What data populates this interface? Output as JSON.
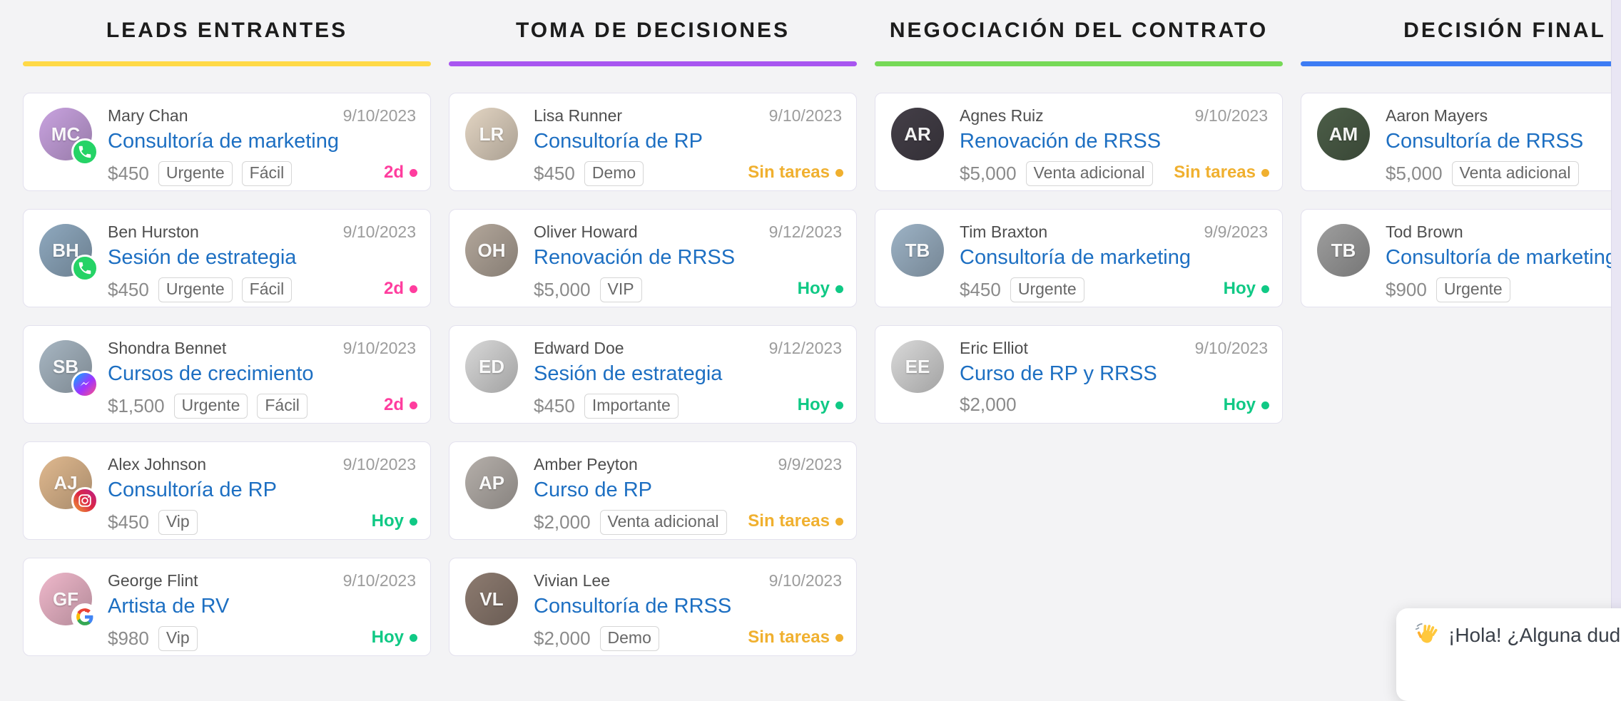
{
  "board": {
    "columns": [
      {
        "title": "LEADS ENTRANTES",
        "accent_color": "#FFD947",
        "cards": [
          {
            "name": "Mary Chan",
            "date": "9/10/2023",
            "title": "Consultoría de marketing",
            "price": "$450",
            "tags": [
              "Urgente",
              "Fácil"
            ],
            "status": {
              "label": "2d",
              "color": "#FF3D9E"
            },
            "badge": "whatsapp",
            "avatar": {
              "initials": "MC",
              "color": "#c9a3e0"
            }
          },
          {
            "name": "Ben Hurston",
            "date": "9/10/2023",
            "title": "Sesión de estrategia",
            "price": "$450",
            "tags": [
              "Urgente",
              "Fácil"
            ],
            "status": {
              "label": "2d",
              "color": "#FF3D9E"
            },
            "badge": "whatsapp",
            "avatar": {
              "initials": "BH",
              "color": "#8fa9bf"
            }
          },
          {
            "name": "Shondra Bennet",
            "date": "9/10/2023",
            "title": "Cursos de crecimiento",
            "price": "$1,500",
            "tags": [
              "Urgente",
              "Fácil"
            ],
            "status": {
              "label": "2d",
              "color": "#FF3D9E"
            },
            "badge": "messenger",
            "avatar": {
              "initials": "SB",
              "color": "#a7b6c2"
            }
          },
          {
            "name": "Alex Johnson",
            "date": "9/10/2023",
            "title": "Consultoría de RP",
            "price": "$450",
            "tags": [
              "Vip"
            ],
            "status": {
              "label": "Hoy",
              "color": "#10C985"
            },
            "badge": "instagram",
            "avatar": {
              "initials": "AJ",
              "color": "#e0b98f"
            }
          },
          {
            "name": "George Flint",
            "date": "9/10/2023",
            "title": "Artista de RV",
            "price": "$980",
            "tags": [
              "Vip"
            ],
            "status": {
              "label": "Hoy",
              "color": "#10C985"
            },
            "badge": "google",
            "avatar": {
              "initials": "GF",
              "color": "#efb8cb"
            }
          }
        ]
      },
      {
        "title": "TOMA DE DECISIONES",
        "accent_color": "#A855F0",
        "cards": [
          {
            "name": "Lisa Runner",
            "date": "9/10/2023",
            "title": "Consultoría de RP",
            "price": "$450",
            "tags": [
              "Demo"
            ],
            "status": {
              "label": "Sin tareas",
              "color": "#F0B02F"
            },
            "badge": null,
            "avatar": {
              "initials": "LR",
              "color": "#e3d5c3"
            }
          },
          {
            "name": "Oliver Howard",
            "date": "9/12/2023",
            "title": "Renovación de RRSS",
            "price": "$5,000",
            "tags": [
              "VIP"
            ],
            "status": {
              "label": "Hoy",
              "color": "#10C985"
            },
            "badge": null,
            "avatar": {
              "initials": "OH",
              "color": "#b3a79b"
            }
          },
          {
            "name": "Edward Doe",
            "date": "9/12/2023",
            "title": "Sesión de estrategia",
            "price": "$450",
            "tags": [
              "Importante"
            ],
            "status": {
              "label": "Hoy",
              "color": "#10C985"
            },
            "badge": null,
            "avatar": {
              "initials": "ED",
              "color": "#d8d8d8"
            }
          },
          {
            "name": "Amber Peyton",
            "date": "9/9/2023",
            "title": "Curso de RP",
            "price": "$2,000",
            "tags": [
              "Venta adicional"
            ],
            "status": {
              "label": "Sin tareas",
              "color": "#F0B02F"
            },
            "badge": null,
            "avatar": {
              "initials": "AP",
              "color": "#b5afaa"
            }
          },
          {
            "name": "Vivian Lee",
            "date": "9/10/2023",
            "title": "Consultoría de RRSS",
            "price": "$2,000",
            "tags": [
              "Demo"
            ],
            "status": {
              "label": "Sin tareas",
              "color": "#F0B02F"
            },
            "badge": null,
            "avatar": {
              "initials": "VL",
              "color": "#8d7b70"
            }
          }
        ]
      },
      {
        "title": "NEGOCIACIÓN DEL CONTRATO",
        "accent_color": "#76D957",
        "cards": [
          {
            "name": "Agnes Ruiz",
            "date": "9/10/2023",
            "title": "Renovación de RRSS",
            "price": "$5,000",
            "tags": [
              "Venta adicional"
            ],
            "status": {
              "label": "Sin tareas",
              "color": "#F0B02F"
            },
            "badge": null,
            "avatar": {
              "initials": "AR",
              "color": "#443f48"
            }
          },
          {
            "name": "Tim Braxton",
            "date": "9/9/2023",
            "title": "Consultoría de marketing",
            "price": "$450",
            "tags": [
              "Urgente"
            ],
            "status": {
              "label": "Hoy",
              "color": "#10C985"
            },
            "badge": null,
            "avatar": {
              "initials": "TB",
              "color": "#9db3c6"
            }
          },
          {
            "name": "Eric Elliot",
            "date": "9/10/2023",
            "title": "Curso de RP y RRSS",
            "price": "$2,000",
            "tags": [],
            "status": {
              "label": "Hoy",
              "color": "#10C985"
            },
            "badge": null,
            "avatar": {
              "initials": "EE",
              "color": "#d9d9d9"
            }
          }
        ]
      },
      {
        "title": "DECISIÓN FINAL",
        "accent_color": "#3D7CF4",
        "cards": [
          {
            "name": "Aaron Mayers",
            "date": "",
            "title": "Consultoría de RRSS",
            "price": "$5,000",
            "tags": [
              "Venta adicional"
            ],
            "status": null,
            "badge": null,
            "avatar": {
              "initials": "AM",
              "color": "#4c5e48"
            }
          },
          {
            "name": "Tod Brown",
            "date": "",
            "title": "Consultoría de marketing",
            "price": "$900",
            "tags": [
              "Urgente"
            ],
            "status": null,
            "badge": null,
            "avatar": {
              "initials": "TB",
              "color": "#9e9e9e"
            }
          }
        ]
      }
    ]
  },
  "chat": {
    "icon": "waving-hand",
    "message": "¡Hola! ¿Alguna duda co"
  }
}
